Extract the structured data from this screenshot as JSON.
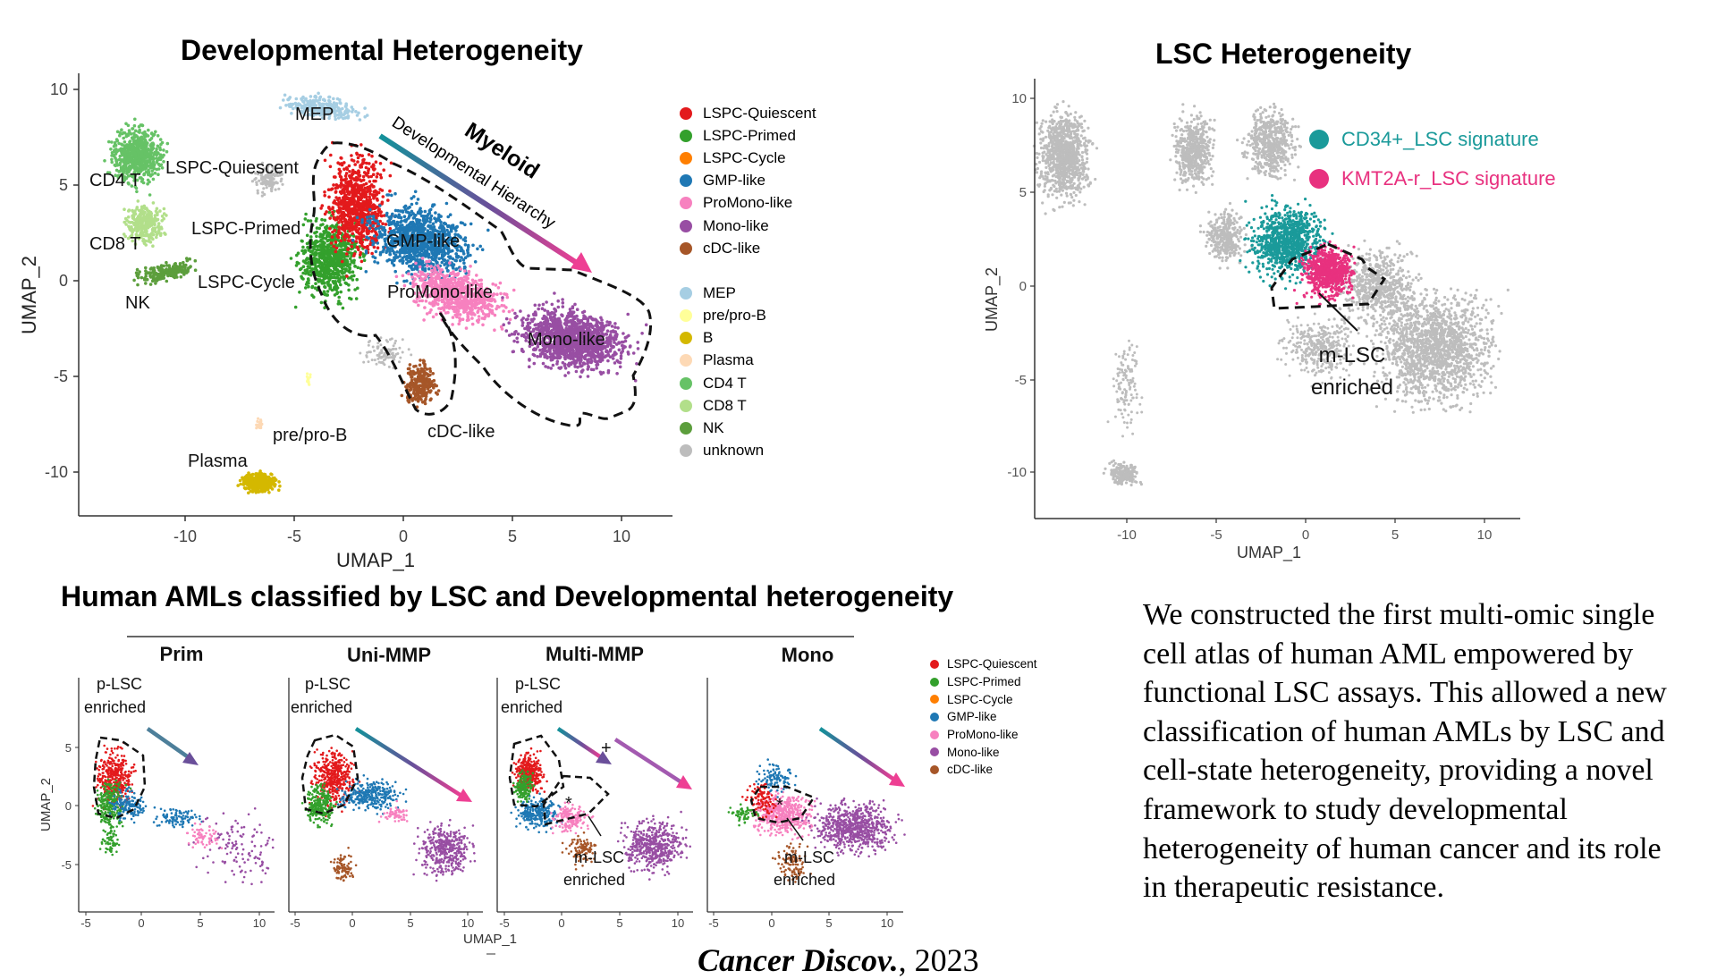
{
  "panel_a": {
    "title": "Developmental Heterogeneity",
    "xlabel": "UMAP_1",
    "ylabel": "UMAP_2",
    "xticks": [
      "-10",
      "-5",
      "0",
      "5",
      "10"
    ],
    "yticks": [
      "10",
      "5",
      "0",
      "-5",
      "-10"
    ],
    "cluster_labels": {
      "mep": "MEP",
      "cd4": "CD4 T",
      "lspcq": "LSPC-Quiescent",
      "cd8": "CD8 T",
      "lspcp": "LSPC-Primed",
      "nk": "NK",
      "lspcc": "LSPC-Cycle",
      "gmp": "GMP-like",
      "promono": "ProMono-like",
      "mono": "Mono-like",
      "prepro": "pre/pro-B",
      "cdc": "cDC-like",
      "plasma": "Plasma"
    },
    "arrow_labels": {
      "myeloid": "Myeloid",
      "devhier": "Developmental Hierarchy"
    },
    "legend_group1": [
      {
        "label": "LSPC-Quiescent",
        "color": "#e31a1c"
      },
      {
        "label": "LSPC-Primed",
        "color": "#33a02c"
      },
      {
        "label": "LSPC-Cycle",
        "color": "#ff7f00"
      },
      {
        "label": "GMP-like",
        "color": "#1f78b4"
      },
      {
        "label": "ProMono-like",
        "color": "#f781bf"
      },
      {
        "label": "Mono-like",
        "color": "#984ea3"
      },
      {
        "label": "cDC-like",
        "color": "#a65628"
      }
    ],
    "legend_group2": [
      {
        "label": "MEP",
        "color": "#a6cee3"
      },
      {
        "label": "pre/pro-B",
        "color": "#ffff99"
      },
      {
        "label": "B",
        "color": "#d4b800"
      },
      {
        "label": "Plasma",
        "color": "#fdd9b5"
      },
      {
        "label": "CD4 T",
        "color": "#66c266"
      },
      {
        "label": "CD8 T",
        "color": "#b2df8a"
      },
      {
        "label": "NK",
        "color": "#5c9e3c"
      },
      {
        "label": "unknown",
        "color": "#bdbdbd"
      }
    ]
  },
  "panel_b": {
    "title": "LSC Heterogeneity",
    "xlabel": "UMAP_1",
    "ylabel": "UMAP_2",
    "xticks": [
      "-10",
      "-5",
      "0",
      "5",
      "10"
    ],
    "yticks": [
      "10",
      "5",
      "0",
      "-5",
      "-10"
    ],
    "signatures": [
      {
        "label": "CD34+_LSC signature",
        "color": "#1a9a9a"
      },
      {
        "label": "KMT2A-r_LSC signature",
        "color": "#e8317f"
      }
    ],
    "annotation_line1": "m-LSC",
    "annotation_line2": "enriched"
  },
  "panel_c": {
    "title": "Human AMLs classified by LSC and Developmental heterogeneity",
    "ylabel": "UMAP_2",
    "xlabel": "UMAP_1",
    "subpanels": [
      {
        "name": "Prim",
        "note1": "p-LSC",
        "note2": "enriched"
      },
      {
        "name": "Uni-MMP",
        "note1": "p-LSC",
        "note2": "enriched"
      },
      {
        "name": "Multi-MMP",
        "note1": "p-LSC",
        "note2": "enriched",
        "note3": "m-LSC",
        "note4": "enriched",
        "plus": "+",
        "star": "*"
      },
      {
        "name": "Mono",
        "note3": "m-LSC",
        "note4": "enriched",
        "star": "*"
      }
    ],
    "xticks": [
      "-5",
      "0",
      "5",
      "10"
    ],
    "yticks": [
      "5",
      "0",
      "-5"
    ],
    "legend": [
      {
        "label": "LSPC-Quiescent",
        "color": "#e31a1c"
      },
      {
        "label": "LSPC-Primed",
        "color": "#33a02c"
      },
      {
        "label": "LSPC-Cycle",
        "color": "#ff7f00"
      },
      {
        "label": "GMP-like",
        "color": "#1f78b4"
      },
      {
        "label": "ProMono-like",
        "color": "#f781bf"
      },
      {
        "label": "Mono-like",
        "color": "#984ea3"
      },
      {
        "label": "cDC-like",
        "color": "#a65628"
      }
    ]
  },
  "summary_text": "We constructed the first multi-omic single cell atlas of human AML empowered by functional LSC assays. This allowed a new classification of human AMLs by LSC and cell-state heterogeneity, providing a novel framework to study developmental heterogeneity of human cancer and its role in therapeutic resistance.",
  "citation": {
    "journal": "Cancer Discov.",
    "year": ", 2023"
  }
}
